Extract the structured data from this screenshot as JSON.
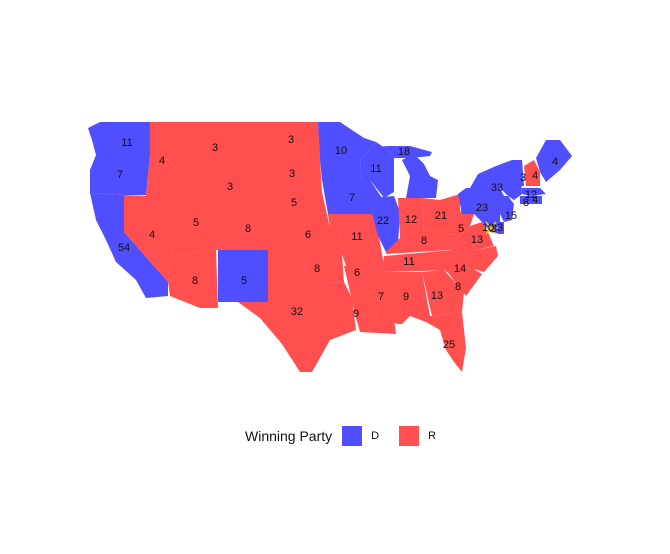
{
  "legend": {
    "title": "Winning Party",
    "items": [
      {
        "label": "D",
        "color": "#4F4FFF"
      },
      {
        "label": "R",
        "color": "#FF4F4F"
      }
    ]
  },
  "states": [
    {
      "name": "washington",
      "party": "D",
      "votes": "11"
    },
    {
      "name": "oregon",
      "party": "D",
      "votes": "7"
    },
    {
      "name": "california",
      "party": "D",
      "votes": "54"
    },
    {
      "name": "idaho",
      "party": "R",
      "votes": "4"
    },
    {
      "name": "nevada",
      "party": "R",
      "votes": "4"
    },
    {
      "name": "montana",
      "party": "R",
      "votes": "3"
    },
    {
      "name": "wyoming",
      "party": "R",
      "votes": "3"
    },
    {
      "name": "utah",
      "party": "R",
      "votes": "5"
    },
    {
      "name": "arizona",
      "party": "R",
      "votes": "8"
    },
    {
      "name": "colorado",
      "party": "R",
      "votes": "8"
    },
    {
      "name": "new-mexico",
      "party": "D",
      "votes": "5"
    },
    {
      "name": "north-dakota",
      "party": "R",
      "votes": "3"
    },
    {
      "name": "south-dakota",
      "party": "R",
      "votes": "3"
    },
    {
      "name": "nebraska",
      "party": "R",
      "votes": "5"
    },
    {
      "name": "kansas",
      "party": "R",
      "votes": "6"
    },
    {
      "name": "oklahoma",
      "party": "R",
      "votes": "8"
    },
    {
      "name": "texas",
      "party": "R",
      "votes": "32"
    },
    {
      "name": "minnesota",
      "party": "D",
      "votes": "10"
    },
    {
      "name": "iowa",
      "party": "D",
      "votes": "7"
    },
    {
      "name": "missouri",
      "party": "R",
      "votes": "11"
    },
    {
      "name": "arkansas",
      "party": "R",
      "votes": "6"
    },
    {
      "name": "louisiana",
      "party": "R",
      "votes": "9"
    },
    {
      "name": "wisconsin",
      "party": "D",
      "votes": "11"
    },
    {
      "name": "illinois",
      "party": "D",
      "votes": "22"
    },
    {
      "name": "michigan",
      "party": "D",
      "votes": "18"
    },
    {
      "name": "indiana",
      "party": "R",
      "votes": "12"
    },
    {
      "name": "ohio",
      "party": "R",
      "votes": "21"
    },
    {
      "name": "kentucky",
      "party": "R",
      "votes": "8"
    },
    {
      "name": "tennessee",
      "party": "R",
      "votes": "11"
    },
    {
      "name": "mississippi",
      "party": "R",
      "votes": "7"
    },
    {
      "name": "alabama",
      "party": "R",
      "votes": "9"
    },
    {
      "name": "georgia",
      "party": "R",
      "votes": "13"
    },
    {
      "name": "florida",
      "party": "R",
      "votes": "25"
    },
    {
      "name": "south-carolina",
      "party": "R",
      "votes": "8"
    },
    {
      "name": "north-carolina",
      "party": "R",
      "votes": "14"
    },
    {
      "name": "virginia",
      "party": "R",
      "votes": "13"
    },
    {
      "name": "west-virginia",
      "party": "R",
      "votes": "5"
    },
    {
      "name": "pennsylvania",
      "party": "D",
      "votes": "23"
    },
    {
      "name": "new-york",
      "party": "D",
      "votes": "33"
    },
    {
      "name": "vermont",
      "party": "D",
      "votes": "3"
    },
    {
      "name": "new-hampshire",
      "party": "R",
      "votes": "4"
    },
    {
      "name": "maine",
      "party": "D",
      "votes": "4"
    },
    {
      "name": "massachusetts",
      "party": "D",
      "votes": "12"
    },
    {
      "name": "rhode-island",
      "party": "D",
      "votes": "4"
    },
    {
      "name": "connecticut",
      "party": "D",
      "votes": "8"
    },
    {
      "name": "new-jersey",
      "party": "D",
      "votes": "15"
    },
    {
      "name": "delaware",
      "party": "D",
      "votes": "3"
    },
    {
      "name": "maryland",
      "party": "D",
      "votes": "10"
    },
    {
      "name": "district-of-columbia",
      "party": "D",
      "votes": "3"
    }
  ]
}
